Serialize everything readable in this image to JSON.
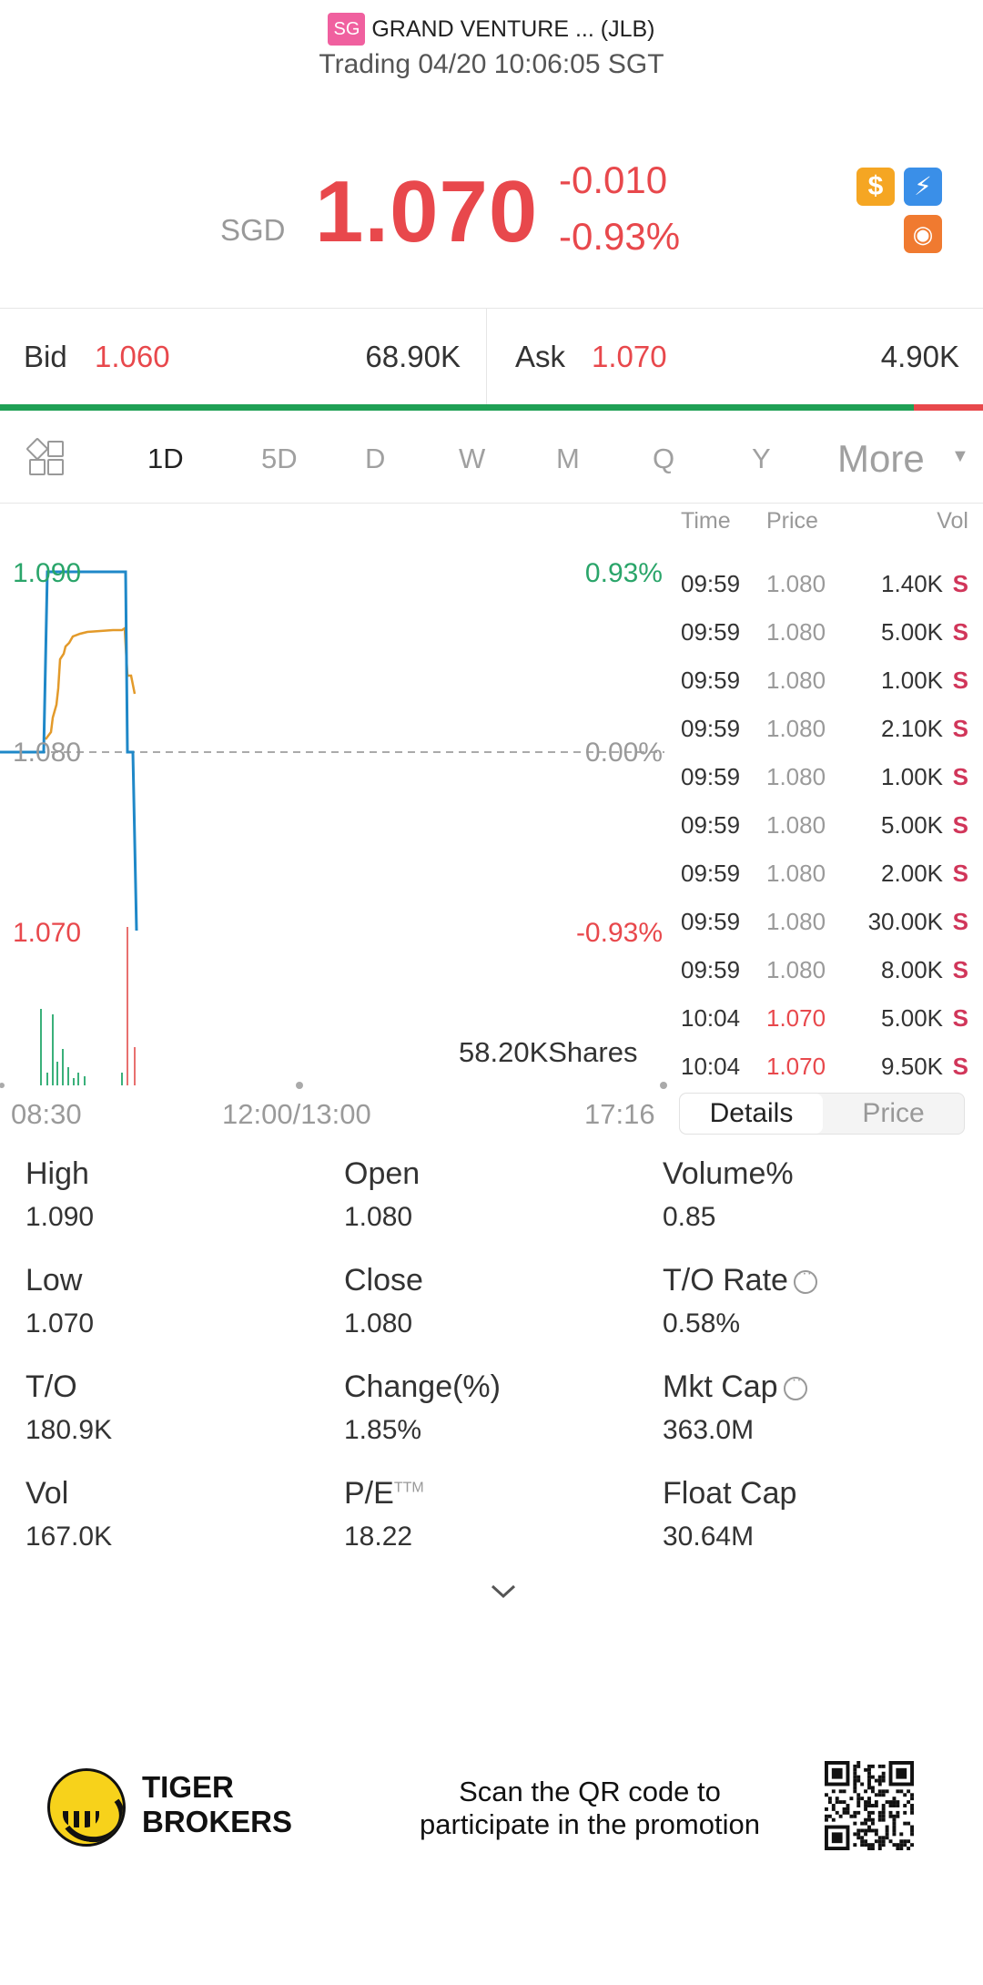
{
  "header": {
    "market_badge": "SG",
    "stock_name": "GRAND VENTURE ... (JLB)",
    "status_line": "Trading 04/20 10:06:05 SGT"
  },
  "quote": {
    "currency": "SGD",
    "price": "1.070",
    "change": "-0.010",
    "change_pct": "-0.93%",
    "colors": {
      "down": "#e8484c",
      "up": "#2aa56a"
    }
  },
  "icons": [
    "dollar-icon",
    "lightning-icon",
    "orange-badge-icon"
  ],
  "bidask": {
    "bid_label": "Bid",
    "bid_price": "1.060",
    "bid_size": "68.90K",
    "ask_label": "Ask",
    "ask_price": "1.070",
    "ask_size": "4.90K",
    "bid_share": 0.93
  },
  "tabs": {
    "items": [
      "1D",
      "5D",
      "D",
      "W",
      "M",
      "Q",
      "Y"
    ],
    "active": "1D",
    "more_label": "More"
  },
  "chart": {
    "left_labels": {
      "high": "1.090",
      "mid": "1.080",
      "low": "1.070"
    },
    "right_labels": {
      "high": "0.93%",
      "mid": "0.00%",
      "low": "-0.93%"
    },
    "volume_label": "58.20KShares",
    "x_labels": {
      "start": "08:30",
      "mid": "12:00/13:00",
      "end": "17:16"
    }
  },
  "ticks": {
    "headers": {
      "time": "Time",
      "price": "Price",
      "vol": "Vol"
    },
    "rows": [
      {
        "time": "09:59",
        "price": "1.080",
        "vol": "1.40K",
        "side": "S",
        "down": false
      },
      {
        "time": "09:59",
        "price": "1.080",
        "vol": "5.00K",
        "side": "S",
        "down": false
      },
      {
        "time": "09:59",
        "price": "1.080",
        "vol": "1.00K",
        "side": "S",
        "down": false
      },
      {
        "time": "09:59",
        "price": "1.080",
        "vol": "2.10K",
        "side": "S",
        "down": false
      },
      {
        "time": "09:59",
        "price": "1.080",
        "vol": "1.00K",
        "side": "S",
        "down": false
      },
      {
        "time": "09:59",
        "price": "1.080",
        "vol": "5.00K",
        "side": "S",
        "down": false
      },
      {
        "time": "09:59",
        "price": "1.080",
        "vol": "2.00K",
        "side": "S",
        "down": false
      },
      {
        "time": "09:59",
        "price": "1.080",
        "vol": "30.00K",
        "side": "S",
        "down": false
      },
      {
        "time": "09:59",
        "price": "1.080",
        "vol": "8.00K",
        "side": "S",
        "down": false
      },
      {
        "time": "10:04",
        "price": "1.070",
        "vol": "5.00K",
        "side": "S",
        "down": true
      },
      {
        "time": "10:04",
        "price": "1.070",
        "vol": "9.50K",
        "side": "S",
        "down": true
      }
    ],
    "tab_details": "Details",
    "tab_price": "Price"
  },
  "stats": {
    "high": {
      "label": "High",
      "value": "1.090"
    },
    "open": {
      "label": "Open",
      "value": "1.080"
    },
    "volume_pct": {
      "label": "Volume%",
      "value": "0.85"
    },
    "low": {
      "label": "Low",
      "value": "1.070"
    },
    "close": {
      "label": "Close",
      "value": "1.080"
    },
    "to_rate": {
      "label": "T/O Rate",
      "value": "0.58%"
    },
    "to": {
      "label": "T/O",
      "value": "180.9K"
    },
    "change_pct": {
      "label": "Change(%)",
      "value": "1.85%"
    },
    "mkt_cap": {
      "label": "Mkt Cap",
      "value": "363.0M"
    },
    "vol": {
      "label": "Vol",
      "value": "167.0K"
    },
    "pe": {
      "label": "P/E",
      "sup": "TTM",
      "value": "18.22"
    },
    "float_cap": {
      "label": "Float Cap",
      "value": "30.64M"
    }
  },
  "promo": {
    "brand_line1": "TIGER",
    "brand_line2": "BROKERS",
    "text_line1": "Scan the QR code to",
    "text_line2": "participate in the promotion"
  }
}
